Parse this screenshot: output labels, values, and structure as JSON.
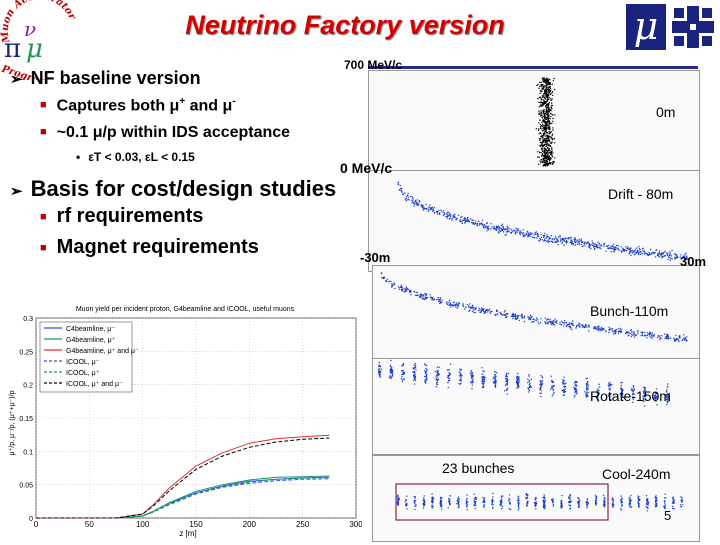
{
  "slide": {
    "title": "Neutrino Factory version",
    "page_number": "5",
    "logos": {
      "left_logo_arc_text": "Muon Accelerator Program",
      "right_logo_mu": "μ"
    }
  },
  "bullets": {
    "b1": "NF baseline version",
    "b1_sub1_prefix": "Captures both μ",
    "b1_sub1_plus": "+",
    "b1_sub1_mid": " and μ",
    "b1_sub1_minus": "-",
    "b1_sub2": "~0.1 μ/p within IDS acceptance",
    "b1_sub3": "εT < 0.03, εL < 0.15",
    "b2": "Basis for cost/design studies",
    "b2_sub1": "rf requirements",
    "b2_sub2": "Magnet requirements"
  },
  "phase_space": {
    "axis_top": "700 MeV/c",
    "axis_mid": "0 MeV/c",
    "axis_left": "-30m",
    "axis_right": "30m",
    "stages": [
      "0m",
      "Drift - 80m",
      "Bunch-110m",
      "Rotate-150m",
      "Cool-240m"
    ],
    "bunches_label": "23 bunches"
  },
  "chart_data": {
    "type": "line",
    "title": "Muon yield per incident proton, G4beamline and ICOOL, useful muons",
    "xlabel": "z [m]",
    "ylabel": "μ⁺/p, μ⁻/p, (μ⁺+μ⁻)/p",
    "xlim": [
      0,
      300
    ],
    "ylim": [
      0,
      0.3
    ],
    "xticks": [
      "0",
      "50",
      "100",
      "150",
      "200",
      "250",
      "300"
    ],
    "yticks": [
      "0",
      "0.05",
      "0.1",
      "0.15",
      "0.2",
      "0.25",
      "0.3"
    ],
    "legend_position": "top-left",
    "grid": true,
    "x": [
      0,
      25,
      50,
      75,
      100,
      110,
      125,
      150,
      175,
      200,
      225,
      250,
      275
    ],
    "series": [
      {
        "name": "C4beamline, μ⁻",
        "color": "#3050ff",
        "dash": "solid",
        "values": [
          0,
          0,
          0,
          0,
          0.003,
          0.01,
          0.022,
          0.038,
          0.048,
          0.055,
          0.058,
          0.06,
          0.061
        ]
      },
      {
        "name": "G4beamline, μ⁺",
        "color": "#1a9850",
        "dash": "solid",
        "values": [
          0,
          0,
          0,
          0,
          0.003,
          0.01,
          0.023,
          0.04,
          0.05,
          0.057,
          0.061,
          0.062,
          0.063
        ]
      },
      {
        "name": "G4beamline, μ⁺ and μ⁻",
        "color": "#e03030",
        "dash": "solid",
        "values": [
          0,
          0,
          0,
          0,
          0.006,
          0.02,
          0.045,
          0.078,
          0.098,
          0.112,
          0.119,
          0.122,
          0.124
        ]
      },
      {
        "name": "ICOOL, μ⁻",
        "color": "#3050ff",
        "dash": "dash",
        "values": [
          0,
          0,
          0,
          0,
          0.003,
          0.009,
          0.02,
          0.036,
          0.046,
          0.052,
          0.056,
          0.058,
          0.059
        ]
      },
      {
        "name": "ICOOL, μ⁺",
        "color": "#1a9850",
        "dash": "dash",
        "values": [
          0,
          0,
          0,
          0,
          0.003,
          0.009,
          0.021,
          0.037,
          0.047,
          0.054,
          0.058,
          0.06,
          0.061
        ]
      },
      {
        "name": "ICOOL, μ⁺ and μ⁻",
        "color": "#000000",
        "dash": "dash",
        "values": [
          0,
          0,
          0,
          0,
          0.006,
          0.018,
          0.041,
          0.073,
          0.093,
          0.106,
          0.114,
          0.118,
          0.12
        ]
      }
    ]
  },
  "colors": {
    "title": "#d40000",
    "bullet_square": "#c00000",
    "rule": "#2a2a8a",
    "scatter_blue": "#1a3cc8"
  }
}
